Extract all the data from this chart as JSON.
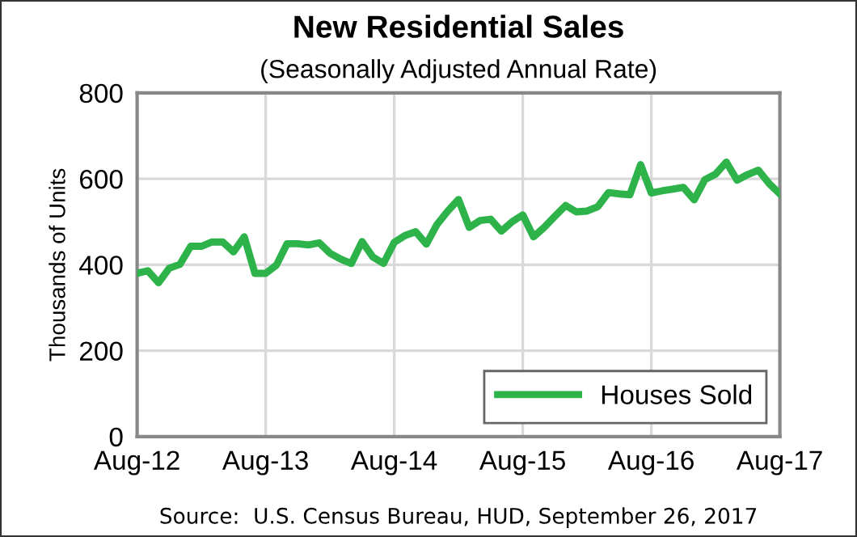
{
  "chart_data": {
    "type": "line",
    "title": "New Residential Sales",
    "subtitle": "(Seasonally Adjusted Annual Rate)",
    "ylabel": "Thousands of Units",
    "annotations": [
      "Source:  U.S. Census Bureau, HUD, September 26, 2017"
    ],
    "categories": [
      "Aug-12",
      null,
      null,
      null,
      null,
      null,
      null,
      null,
      null,
      null,
      null,
      null,
      "Aug-13",
      null,
      null,
      null,
      null,
      null,
      null,
      null,
      null,
      null,
      null,
      null,
      "Aug-14",
      null,
      null,
      null,
      null,
      null,
      null,
      null,
      null,
      null,
      null,
      null,
      "Aug-15",
      null,
      null,
      null,
      null,
      null,
      null,
      null,
      null,
      null,
      null,
      null,
      "Aug-16",
      null,
      null,
      null,
      null,
      null,
      null,
      null,
      null,
      null,
      null,
      null,
      "Aug-17"
    ],
    "series": [
      {
        "name": "Houses Sold",
        "color": "#2db34a",
        "values": [
          380,
          386,
          358,
          392,
          401,
          443,
          443,
          453,
          453,
          430,
          465,
          380,
          380,
          399,
          449,
          449,
          446,
          451,
          427,
          413,
          403,
          454,
          418,
          403,
          452,
          468,
          477,
          448,
          494,
          525,
          552,
          487,
          503,
          506,
          478,
          500,
          516,
          465,
          487,
          513,
          538,
          523,
          525,
          535,
          568,
          565,
          563,
          633,
          567,
          572,
          576,
          580,
          551,
          598,
          611,
          639,
          597,
          610,
          620,
          589,
          565
        ]
      }
    ],
    "ylim": [
      0,
      800
    ],
    "yticks": [
      0,
      200,
      400,
      600,
      800
    ],
    "grid": true,
    "legend": "lower right",
    "marker": "none",
    "line_style": "solid"
  }
}
